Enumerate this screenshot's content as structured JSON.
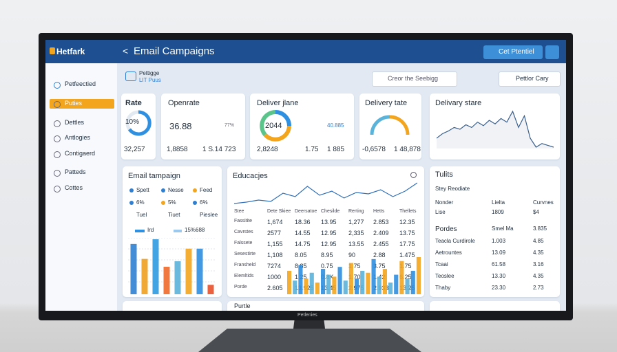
{
  "header": {
    "brand": "Hetfark",
    "back": "<",
    "title": "Email Campaigns",
    "button": "Cet Ptentiel"
  },
  "sidebar": [
    "Petfeectied",
    "Puties",
    "Dettles",
    "Antlogies",
    "Contigaerd",
    "Patteds",
    "Cottes"
  ],
  "toolbar": {
    "title": "Pettigge",
    "subtitle": "LIT Puus",
    "search": "Creor the Seebigg",
    "dropdown": "Pettlor Cary"
  },
  "cards": [
    {
      "title": "Rate",
      "gauge": "10%",
      "value": "32,257"
    },
    {
      "title": "Openrate",
      "value": "36.88",
      "change": "77%",
      "stats": [
        "1,8858",
        "1 S.14 723"
      ]
    },
    {
      "title": "Deliver jlane",
      "gauge": "2044",
      "change": "40.885",
      "stats": [
        "2,8248",
        "1.75",
        "1 885"
      ]
    },
    {
      "title": "Delivery tate",
      "stats": [
        "-0,6578",
        "1 48,878"
      ]
    },
    {
      "title": "Delivary stare",
      "series": [
        40,
        45,
        48,
        52,
        50,
        55,
        52,
        58,
        54,
        60,
        56,
        62,
        58,
        70,
        52,
        65,
        40,
        30,
        34,
        32,
        30
      ]
    }
  ],
  "email_panel": {
    "title": "Email tampaign",
    "legend": [
      [
        "Spett",
        "Nesse",
        "Feed"
      ],
      [
        "6%",
        "5%",
        "6%"
      ],
      [
        "Tuel",
        "Tiuet",
        "Pieslee"
      ]
    ],
    "bar_labels": [
      "Ird",
      "15%688"
    ],
    "bars": {
      "values": [
        64,
        45,
        70,
        35,
        42,
        58,
        58,
        12
      ],
      "colors": [
        "#2f7fd1",
        "#f0a020",
        "#2f9ae0",
        "#f06a2a",
        "#5bb3d9",
        "#f3a51e",
        "#2f8fe0",
        "#e8502a"
      ]
    }
  },
  "table_panel": {
    "title": "Educacjes",
    "line": [
      30,
      32,
      35,
      33,
      45,
      40,
      55,
      42,
      48,
      38,
      46,
      44,
      50,
      40,
      48,
      60
    ],
    "headers": [
      "Stee",
      "Dete Skiee",
      "Deersatoe",
      "Chesilde",
      "Rerting",
      "Hetts",
      "Thellets"
    ],
    "rows": [
      [
        "Fassitite",
        "1,674",
        "18.36",
        "13.95",
        "1,277",
        "2.853",
        "12.35"
      ],
      [
        "Cavrstes",
        "2577",
        "14.55",
        "12.95",
        "2,335",
        "2.409",
        "13.75"
      ],
      [
        "Falssete",
        "1,155",
        "14.75",
        "12.95",
        "13.55",
        "2.455",
        "17.75"
      ],
      [
        "Sesestirte",
        "1,108",
        "8.05",
        "8.95",
        "90",
        "2.88",
        "1.475"
      ],
      [
        "Fransheld",
        "7274",
        "8.85",
        "0.75",
        "1.75",
        "3.75",
        "1.75"
      ],
      [
        "Elemltids",
        "1000",
        "1.25",
        "0.8K",
        "1.70",
        "1.42",
        "6.25"
      ],
      [
        "Porde",
        "2.605",
        "13.925",
        "13.45",
        "2.975",
        "2.933",
        "13.25"
      ]
    ],
    "bars": {
      "values": [
        60,
        35,
        75,
        40,
        55,
        30,
        65,
        50,
        45,
        70,
        35,
        80,
        40,
        60,
        55,
        90,
        45,
        65,
        30,
        50,
        85,
        40,
        60,
        95
      ],
      "colors": [
        "#f3a51e",
        "#5bb3d9",
        "#2f8fe0",
        "#f3a51e",
        "#5bb3d9",
        "#f3a51e",
        "#2f8fe0",
        "#5bb3d9",
        "#f3a51e",
        "#2f8fe0",
        "#5bb3d9",
        "#f3a51e",
        "#2f8fe0",
        "#5bb3d9",
        "#f3a51e",
        "#2f8fe0",
        "#5bb3d9",
        "#f3a51e",
        "#5bb3d9",
        "#2f8fe0",
        "#f3a51e",
        "#5bb3d9",
        "#2f8fe0",
        "#f3a51e"
      ]
    }
  },
  "totals_panel": {
    "title": "Tulits",
    "subtitle": "Stey Reodiate",
    "headers": [
      "Nonder",
      "Lielta",
      "Curvnes"
    ],
    "first_row": [
      "Lise",
      "1809",
      "$4"
    ],
    "section": [
      "Pordes",
      "Smel Ma",
      "3.835"
    ],
    "rows": [
      [
        "Teacla Curdirole",
        "1.003",
        "4.85"
      ],
      [
        "Aetrountes",
        "13.09",
        "4.35"
      ],
      [
        "Tcaai",
        "61.58",
        "3.16"
      ],
      [
        "Teoslee",
        "13.30",
        "4.35"
      ],
      [
        "Thaby",
        "23.30",
        "2.73"
      ]
    ]
  },
  "bottom": "Purtle",
  "stand_label": "Petlenies"
}
